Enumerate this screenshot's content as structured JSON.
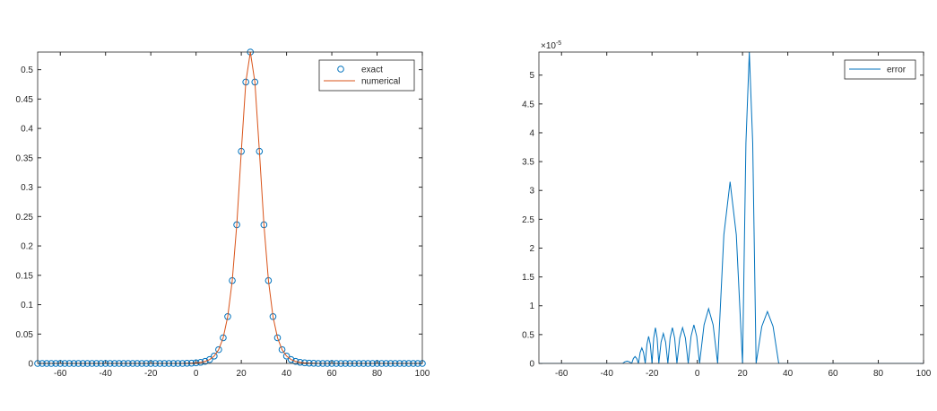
{
  "chart_data": [
    {
      "type": "line",
      "x": [
        -70,
        -68,
        -66,
        -64,
        -62,
        -60,
        -58,
        -56,
        -54,
        -52,
        -50,
        -48,
        -46,
        -44,
        -42,
        -40,
        -38,
        -36,
        -34,
        -32,
        -30,
        -28,
        -26,
        -24,
        -22,
        -20,
        -18,
        -16,
        -14,
        -12,
        -10,
        -8,
        -6,
        -4,
        -2,
        0,
        2,
        4,
        6,
        8,
        10,
        12,
        14,
        16,
        18,
        20,
        22,
        24,
        26,
        28,
        30,
        32,
        34,
        36,
        38,
        40,
        42,
        44,
        46,
        48,
        50,
        52,
        54,
        56,
        58,
        60,
        62,
        64,
        66,
        68,
        70,
        72,
        74,
        76,
        78,
        80,
        82,
        84,
        86,
        88,
        90,
        92,
        94,
        96,
        98,
        100
      ],
      "series": [
        {
          "name": "exact",
          "color": "#0072bd",
          "marker": "o",
          "values": [
            0,
            0,
            0,
            0,
            0,
            0,
            0,
            0,
            0,
            0,
            0,
            0,
            0,
            0,
            0,
            0,
            0,
            0,
            0,
            0,
            0,
            0,
            0,
            0,
            0,
            0,
            0,
            0,
            0,
            0,
            0,
            0,
            0,
            0.0003,
            0.0005,
            0.001,
            0.0019,
            0.0035,
            0.0066,
            0.0125,
            0.0235,
            0.0437,
            0.0798,
            0.141,
            0.236,
            0.361,
            0.479,
            0.53,
            0.479,
            0.361,
            0.236,
            0.141,
            0.0798,
            0.0437,
            0.0235,
            0.0125,
            0.0066,
            0.0035,
            0.0019,
            0.001,
            0.0005,
            0.0003,
            0,
            0,
            0,
            0,
            0,
            0,
            0,
            0,
            0,
            0,
            0,
            0,
            0,
            0,
            0,
            0,
            0,
            0,
            0,
            0,
            0,
            0,
            0,
            0
          ]
        },
        {
          "name": "numerical",
          "color": "#d95319",
          "values": [
            0,
            0,
            0,
            0,
            0,
            0,
            0,
            0,
            0,
            0,
            0,
            0,
            0,
            0,
            0,
            0,
            0,
            0,
            0,
            0,
            0,
            0,
            0,
            0,
            0,
            0,
            0,
            0,
            0,
            0,
            0,
            0,
            0,
            0.0003,
            0.0005,
            0.001,
            0.0019,
            0.0035,
            0.0066,
            0.0125,
            0.0235,
            0.0437,
            0.0798,
            0.141,
            0.236,
            0.361,
            0.479,
            0.53,
            0.479,
            0.361,
            0.236,
            0.141,
            0.0798,
            0.0437,
            0.0235,
            0.0125,
            0.0066,
            0.0035,
            0.0019,
            0.001,
            0.0005,
            0.0003,
            0,
            0,
            0,
            0,
            0,
            0,
            0,
            0,
            0,
            0,
            0,
            0,
            0,
            0,
            0,
            0,
            0,
            0,
            0,
            0,
            0,
            0,
            0,
            0
          ]
        }
      ],
      "xlim": [
        -70,
        100
      ],
      "xticks": [
        -60,
        -40,
        -20,
        0,
        20,
        40,
        60,
        80,
        100
      ],
      "ylim": [
        0,
        0.53
      ],
      "yticks": [
        0,
        0.05,
        0.1,
        0.15,
        0.2,
        0.25,
        0.3,
        0.35,
        0.4,
        0.45,
        0.5
      ],
      "legend": "northeast"
    },
    {
      "type": "line",
      "x": [
        -70,
        -33,
        -32,
        -31,
        -30,
        -29,
        -28.25,
        -27.5,
        -26.75,
        -26,
        -25.25,
        -24.5,
        -23.75,
        -23,
        -22.25,
        -21.5,
        -20.75,
        -20,
        -19.25,
        -18.5,
        -17.75,
        -17,
        -16,
        -15,
        -14,
        -13,
        -12,
        -11,
        -10,
        -9,
        -7.75,
        -6.5,
        -5.25,
        -4,
        -2.75,
        -1.5,
        -0.25,
        1,
        3,
        5,
        7,
        9,
        11.75,
        14.5,
        17.25,
        20,
        21.5,
        23,
        24.5,
        26,
        28.5,
        31,
        33.5,
        36,
        100
      ],
      "series": [
        {
          "name": "error",
          "color": "#0072bd",
          "values": [
            0,
            0,
            0.028,
            0.04,
            0.028,
            0,
            0.085,
            0.12,
            0.085,
            0,
            0.19,
            0.27,
            0.19,
            0,
            0.33,
            0.47,
            0.33,
            0,
            0.44,
            0.62,
            0.44,
            0,
            0.37,
            0.52,
            0.37,
            0,
            0.44,
            0.62,
            0.44,
            0,
            0.44,
            0.62,
            0.44,
            0,
            0.47,
            0.67,
            0.47,
            0,
            0.67,
            0.95,
            0.67,
            0,
            2.23,
            3.15,
            2.23,
            0,
            3.82,
            5.4,
            3.82,
            0,
            0.64,
            0.9,
            0.64,
            0,
            0
          ]
        }
      ],
      "xlim": [
        -70,
        100
      ],
      "xticks": [
        -60,
        -40,
        -20,
        0,
        20,
        40,
        60,
        80,
        100
      ],
      "ylim": [
        0,
        5.4
      ],
      "yticks": [
        0,
        0.5,
        1,
        1.5,
        2,
        2.5,
        3,
        3.5,
        4,
        4.5,
        5
      ],
      "y_scale": {
        "base": "×10",
        "exponent": "-5"
      },
      "legend": "northeast"
    }
  ]
}
